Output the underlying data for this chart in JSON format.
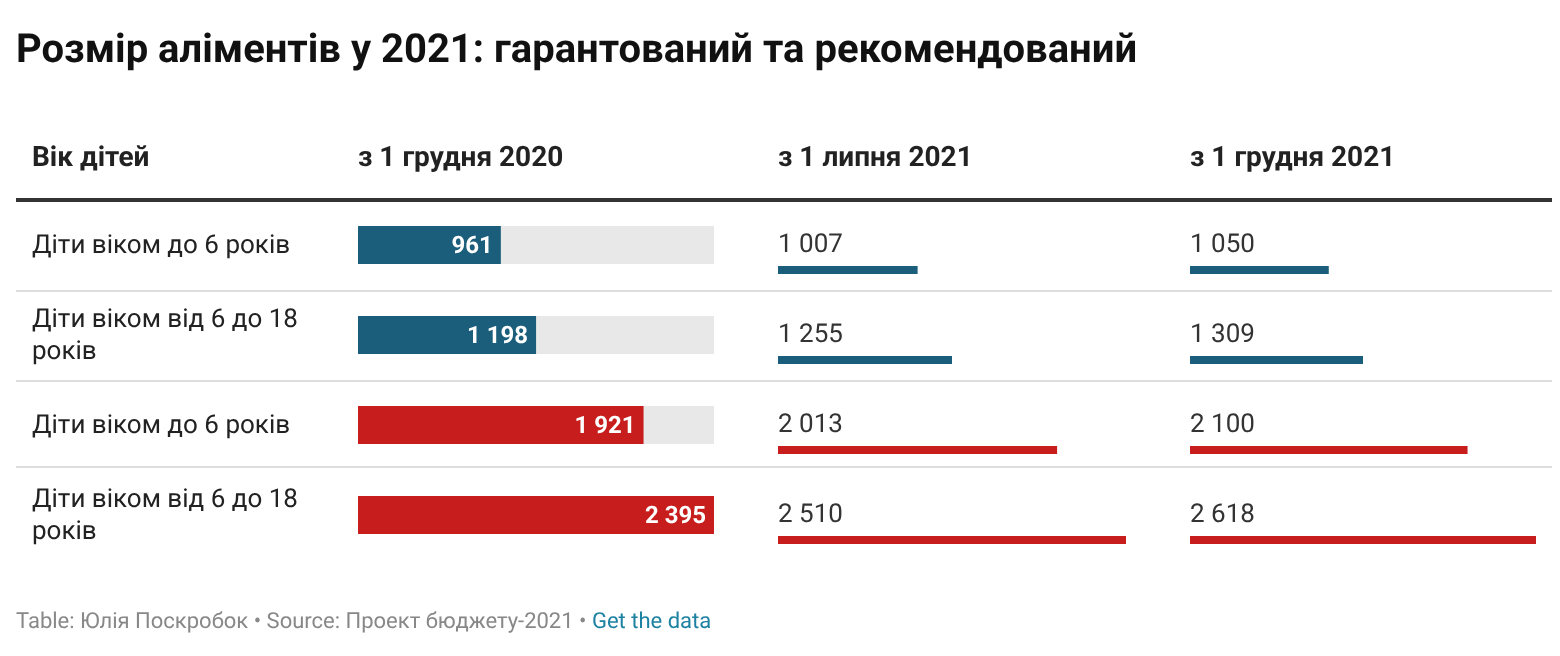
{
  "chart_data": [
    {
      "type": "bar",
      "orientation": "horizontal",
      "title": "Розмір аліментів у 2021: гарантований та рекомендований",
      "subtitle": "з 1 грудня 2020",
      "ylabel": "Вік дітей",
      "categories": [
        "Діти віком до 6 років",
        "Діти віком від 6 до 18 років",
        "Діти віком до 6 років",
        "Діти віком від 6 до 18 років"
      ],
      "values": [
        961,
        1198,
        1921,
        2395
      ],
      "value_labels": [
        "961",
        "1 198",
        "1 921",
        "2 395"
      ],
      "colors": [
        "#1b5e7b",
        "#1b5e7b",
        "#c71e1d",
        "#c71e1d"
      ],
      "tick_labels": "y",
      "annotations": [
        "Table: Юлія Поскробок • Source: Проект бюджету-2021 •",
        "Get the data"
      ]
    },
    {
      "type": "bar",
      "orientation": "horizontal",
      "subtitle": "з 1 липня 2021",
      "categories": [
        null,
        null,
        null,
        null
      ],
      "values": [
        1007,
        1255,
        2013,
        2510
      ],
      "value_labels": [
        "1 007",
        "1 255",
        "2 013",
        "2 510"
      ],
      "colors": [
        "#1b5e7b",
        "#1b5e7b",
        "#c71e1d",
        "#c71e1d"
      ],
      "tick_labels": false
    },
    {
      "type": "bar",
      "orientation": "horizontal",
      "subtitle": "з 1 грудня 2021",
      "categories": [
        null,
        null,
        null,
        null
      ],
      "values": [
        1050,
        1309,
        2100,
        2618
      ],
      "value_labels": [
        "1 050",
        "1 309",
        "2 100",
        "2 618"
      ],
      "colors": [
        "#1b5e7b",
        "#1b5e7b",
        "#c71e1d",
        "#c71e1d"
      ],
      "tick_labels": false
    }
  ]
}
